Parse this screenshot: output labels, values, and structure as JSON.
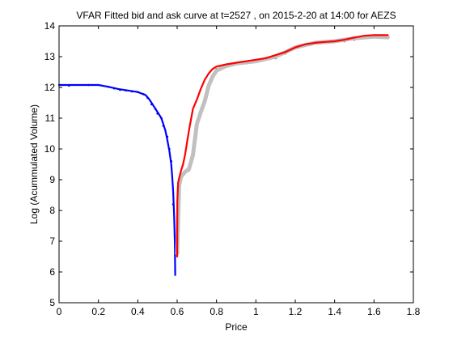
{
  "chart_data": {
    "type": "line",
    "title": "VFAR Fitted bid and ask curve at t=2527 , on 2015-2-20 at 14:00 for AEZS",
    "xlabel": "Price",
    "ylabel": "Log (Acummulated Volume)",
    "xlim": [
      0,
      1.8
    ],
    "ylim": [
      5,
      14
    ],
    "xticks": [
      0,
      0.2,
      0.4,
      0.6,
      0.8,
      1,
      1.2,
      1.4,
      1.6,
      1.8
    ],
    "xtick_labels": [
      "0",
      "0.2",
      "0.4",
      "0.6",
      "0.8",
      "1",
      "1.2",
      "1.4",
      "1.6",
      "1.8"
    ],
    "yticks": [
      5,
      6,
      7,
      8,
      9,
      10,
      11,
      12,
      13,
      14
    ],
    "ytick_labels": [
      "5",
      "6",
      "7",
      "8",
      "9",
      "10",
      "11",
      "12",
      "13",
      "14"
    ],
    "grid": false,
    "legend": "none",
    "series": [
      {
        "role": "bid-observed",
        "style": "dots",
        "color": "#000080",
        "x": [
          0.05,
          0.15,
          0.25,
          0.28,
          0.31,
          0.34,
          0.37,
          0.4,
          0.43,
          0.45,
          0.47,
          0.49,
          0.5,
          0.52,
          0.53,
          0.55,
          0.56,
          0.57,
          0.58
        ],
        "y": [
          12.06,
          12.08,
          12.02,
          11.97,
          11.92,
          11.9,
          11.87,
          11.85,
          11.78,
          11.66,
          11.45,
          11.3,
          11.15,
          11.0,
          10.75,
          10.4,
          10.0,
          9.6,
          8.2
        ]
      },
      {
        "role": "bid-fitted",
        "style": "line",
        "color": "#0000ff",
        "x": [
          0.0,
          0.1,
          0.2,
          0.25,
          0.3,
          0.35,
          0.4,
          0.44,
          0.46,
          0.48,
          0.5,
          0.52,
          0.54,
          0.55,
          0.56,
          0.57,
          0.575,
          0.58,
          0.585,
          0.588,
          0.59
        ],
        "y": [
          12.08,
          12.08,
          12.08,
          12.02,
          11.95,
          11.9,
          11.85,
          11.75,
          11.6,
          11.4,
          11.2,
          11.0,
          10.6,
          10.3,
          9.95,
          9.5,
          9.1,
          8.6,
          7.8,
          7.0,
          5.9
        ]
      },
      {
        "role": "ask-observed",
        "style": "dots",
        "color": "#646464",
        "x": [
          0.61,
          0.62,
          0.64,
          0.66,
          0.67,
          0.69,
          0.7,
          0.72,
          0.74,
          0.76,
          0.78,
          0.8,
          0.85,
          0.9,
          0.95,
          1.0,
          1.05,
          1.1,
          1.15,
          1.2,
          1.3,
          1.4,
          1.45,
          1.5,
          1.55,
          1.6,
          1.65,
          1.67
        ],
        "y": [
          8.5,
          9.1,
          9.25,
          9.3,
          9.6,
          10.1,
          10.9,
          11.25,
          11.6,
          12.1,
          12.4,
          12.6,
          12.72,
          12.78,
          12.82,
          12.85,
          12.9,
          12.95,
          13.1,
          13.3,
          13.45,
          13.48,
          13.5,
          13.55,
          13.62,
          13.65,
          13.62,
          13.6
        ]
      },
      {
        "role": "ask-fitted-band",
        "style": "band",
        "color": "#c0c0c0",
        "x": [
          0.6,
          0.61,
          0.62,
          0.64,
          0.66,
          0.68,
          0.7,
          0.72,
          0.74,
          0.76,
          0.78,
          0.8,
          0.85,
          0.9,
          1.0,
          1.1,
          1.2,
          1.3,
          1.4,
          1.5,
          1.6,
          1.67
        ],
        "y": [
          6.6,
          8.8,
          9.1,
          9.25,
          9.35,
          9.8,
          10.8,
          11.2,
          11.55,
          12.05,
          12.35,
          12.55,
          12.7,
          12.78,
          12.85,
          13.0,
          13.3,
          13.45,
          13.5,
          13.6,
          13.65,
          13.63
        ]
      },
      {
        "role": "ask-fitted",
        "style": "line",
        "color": "#ff0000",
        "x": [
          0.6,
          0.601,
          0.605,
          0.61,
          0.62,
          0.63,
          0.64,
          0.66,
          0.68,
          0.7,
          0.72,
          0.74,
          0.76,
          0.78,
          0.8,
          0.85,
          0.9,
          1.0,
          1.05,
          1.1,
          1.15,
          1.2,
          1.25,
          1.3,
          1.35,
          1.4,
          1.45,
          1.5,
          1.55,
          1.6,
          1.67
        ],
        "y": [
          6.5,
          8.3,
          8.9,
          9.05,
          9.3,
          9.5,
          9.8,
          10.6,
          11.3,
          11.6,
          11.95,
          12.25,
          12.45,
          12.6,
          12.68,
          12.75,
          12.8,
          12.9,
          12.95,
          13.05,
          13.15,
          13.3,
          13.4,
          13.45,
          13.48,
          13.5,
          13.55,
          13.62,
          13.68,
          13.7,
          13.7
        ]
      }
    ]
  }
}
